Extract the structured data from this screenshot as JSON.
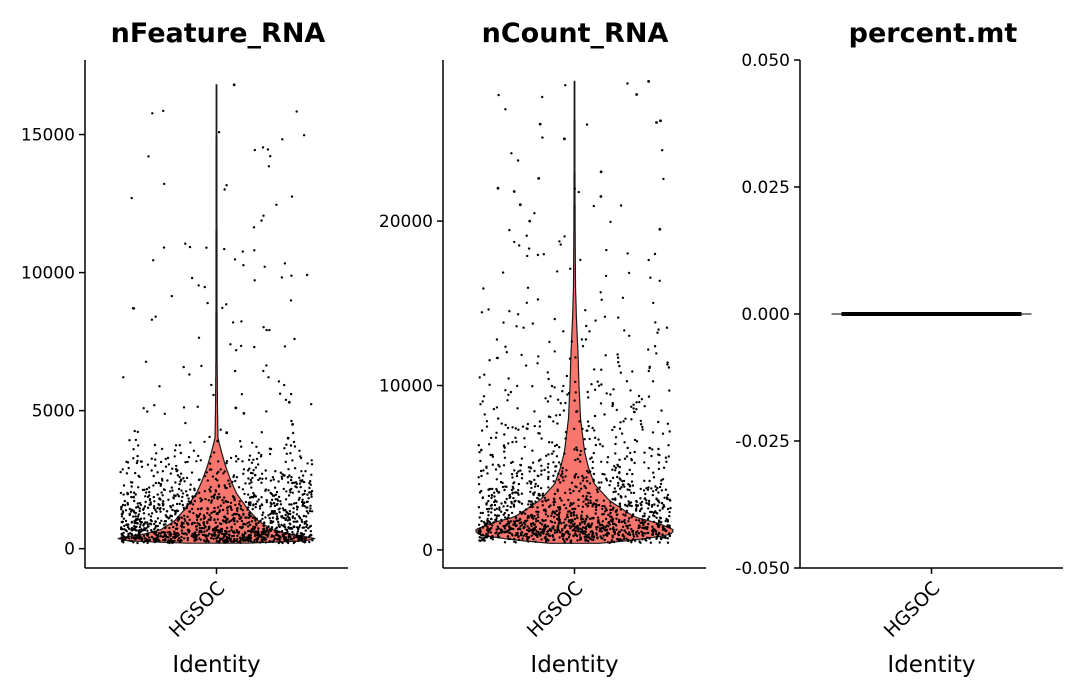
{
  "chart_data": [
    {
      "type": "violin",
      "title": "nFeature_RNA",
      "xlabel": "Identity",
      "ylabel": "",
      "categories": [
        "HGSOC"
      ],
      "ylim": [
        -700,
        17700
      ],
      "yticks": [
        0,
        5000,
        10000,
        15000
      ],
      "ytick_labels": [
        "0",
        "5000",
        "10000",
        "15000"
      ],
      "fill_color": "#F8766D",
      "points": {
        "count": 1500,
        "min": 200,
        "max": 16800,
        "median": 500
      },
      "density": [
        [
          200,
          0.3
        ],
        [
          300,
          1.0
        ],
        [
          400,
          0.98
        ],
        [
          500,
          0.75
        ],
        [
          700,
          0.55
        ],
        [
          1000,
          0.42
        ],
        [
          1500,
          0.3
        ],
        [
          2000,
          0.2
        ],
        [
          2500,
          0.14
        ],
        [
          3000,
          0.09
        ],
        [
          3500,
          0.05
        ],
        [
          4000,
          0.015
        ],
        [
          5000,
          0.01
        ],
        [
          7000,
          0.006
        ],
        [
          10000,
          0.005
        ],
        [
          13000,
          0.004
        ],
        [
          16800,
          0.003
        ]
      ],
      "outliers": [
        16800,
        5300,
        5100,
        4900,
        4500,
        4200,
        4000,
        3900
      ]
    },
    {
      "type": "violin",
      "title": "nCount_RNA",
      "xlabel": "Identity",
      "ylabel": "",
      "categories": [
        "HGSOC"
      ],
      "ylim": [
        -1100,
        29800
      ],
      "yticks": [
        0,
        10000,
        20000
      ],
      "ytick_labels": [
        "0",
        "10000",
        "20000"
      ],
      "fill_color": "#F8766D",
      "points": {
        "count": 1500,
        "min": 400,
        "max": 28500,
        "median": 1500
      },
      "density": [
        [
          400,
          0.25
        ],
        [
          600,
          0.6
        ],
        [
          900,
          0.95
        ],
        [
          1200,
          1.0
        ],
        [
          1600,
          0.85
        ],
        [
          2000,
          0.6
        ],
        [
          3000,
          0.35
        ],
        [
          4000,
          0.2
        ],
        [
          5000,
          0.14
        ],
        [
          6000,
          0.1
        ],
        [
          8000,
          0.06
        ],
        [
          10000,
          0.045
        ],
        [
          12000,
          0.035
        ],
        [
          14000,
          0.02
        ],
        [
          16000,
          0.01
        ],
        [
          20000,
          0.006
        ],
        [
          24000,
          0.004
        ],
        [
          28500,
          0.003
        ]
      ],
      "outliers": [
        28500,
        27700,
        26000,
        26100,
        25900,
        25000,
        23000,
        22600,
        22000,
        21800,
        21500,
        21000,
        20000,
        19500
      ]
    },
    {
      "type": "violin",
      "title": "percent.mt",
      "xlabel": "Identity",
      "ylabel": "",
      "categories": [
        "HGSOC"
      ],
      "ylim": [
        -0.05,
        0.05
      ],
      "yticks": [
        -0.05,
        -0.025,
        0,
        0.025,
        0.05
      ],
      "ytick_labels": [
        "-0.050",
        "-0.025",
        "0.000",
        "0.025",
        "0.050"
      ],
      "fill_color": "#F8766D",
      "points": {
        "count": 1500,
        "min": 0,
        "max": 0,
        "median": 0
      },
      "density": [
        [
          0,
          1.0
        ]
      ],
      "outliers": []
    }
  ]
}
